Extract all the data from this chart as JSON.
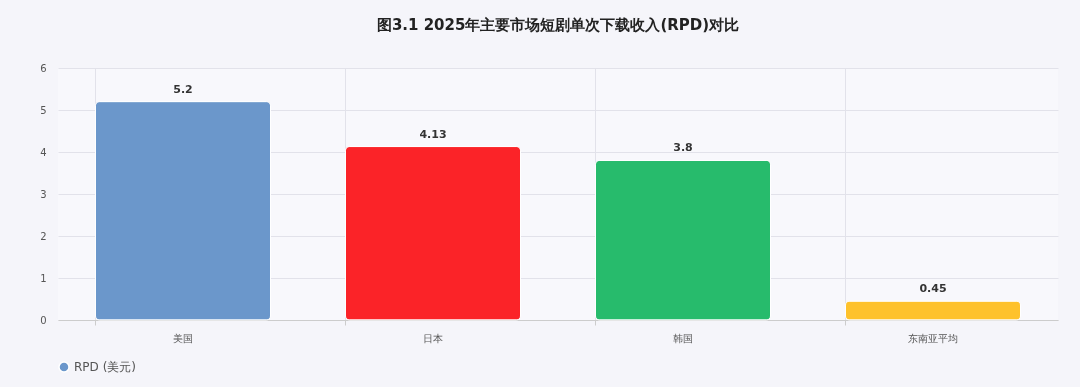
{
  "chart_data": {
    "type": "bar",
    "title": "图3.1 2025年主要市场短剧单次下载收入(RPD)对比",
    "categories": [
      "美国",
      "日本",
      "韩国",
      "东南亚平均"
    ],
    "series": [
      {
        "name": "RPD (美元)",
        "values": [
          5.2,
          4.13,
          3.8,
          0.45
        ]
      }
    ],
    "colors": [
      "#6b97cb",
      "#fb2328",
      "#27bb6c",
      "#fec22c"
    ],
    "ylim": [
      0,
      6
    ],
    "yticks": [
      0,
      1,
      2,
      3,
      4,
      5,
      6
    ],
    "grid": true,
    "legend": "bottom",
    "data_labels": true
  }
}
